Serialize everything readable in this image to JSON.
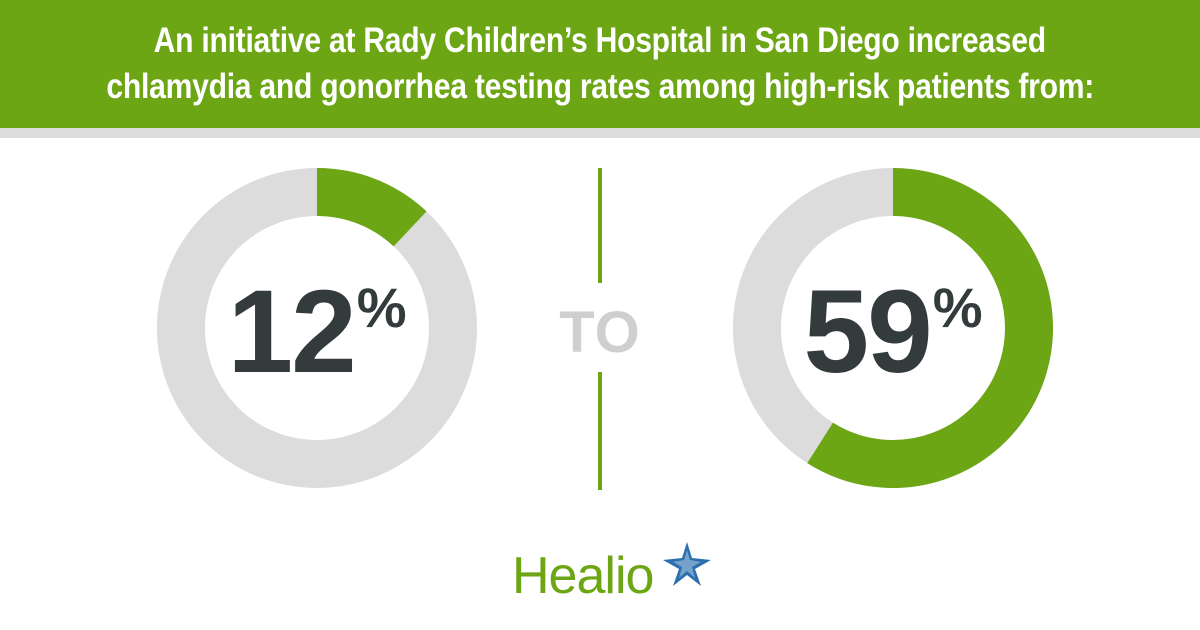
{
  "banner": {
    "line1": "An initiative at Rady Children’s Hospital in San Diego increased",
    "line2": "chlamydia and gonorrhea testing rates among high-risk patients from:"
  },
  "colors": {
    "accent_green": "#6ca614",
    "ring_gray": "#dcdcdc",
    "number_dark": "#333b3c",
    "to_gray": "#cfcfcf",
    "star_blue": "#2b6fb0"
  },
  "chart_data": {
    "type": "pie",
    "charts": [
      {
        "value": 12,
        "max": 100,
        "label": "12",
        "unit": "%"
      },
      {
        "value": 59,
        "max": 100,
        "label": "59",
        "unit": "%"
      }
    ],
    "connector": "TO"
  },
  "footer": {
    "logo_text": "Healio",
    "logo_icon": "star-icon"
  }
}
